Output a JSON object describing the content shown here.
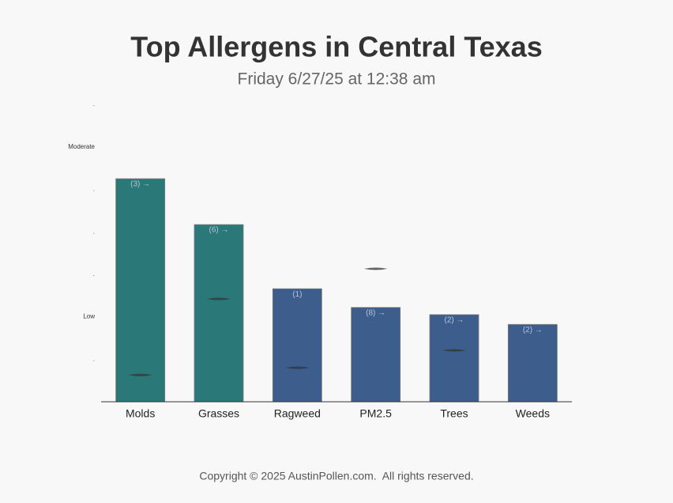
{
  "chart_data": {
    "type": "bar",
    "title": "Top Allergens in Central Texas",
    "subtitle": "Friday 6/27/25 at 12:38 am",
    "categories": [
      "Molds",
      "Grasses",
      "Ragweed",
      "PM2.5",
      "Trees",
      "Weeds"
    ],
    "values": [
      5.25,
      4.17,
      2.66,
      2.22,
      2.05,
      1.82
    ],
    "colors": [
      "#2a7878",
      "#2a7878",
      "#3d5d8c",
      "#3d5d8c",
      "#3d5d8c",
      "#3d5d8c"
    ],
    "annotations": [
      "(3) →",
      "(6) →",
      "(1)",
      "(8) →",
      "(2) →",
      "(2) →"
    ],
    "markers": [
      0.63,
      2.42,
      0.8,
      3.13,
      1.21,
      null
    ],
    "ylim": [
      0,
      7
    ],
    "yticks": [
      {
        "value": 1,
        "label": "."
      },
      {
        "value": 2,
        "label": "Low"
      },
      {
        "value": 3,
        "label": "."
      },
      {
        "value": 4,
        "label": "."
      },
      {
        "value": 5,
        "label": "."
      },
      {
        "value": 6,
        "label": "Moderate"
      },
      {
        "value": 7,
        "label": "."
      }
    ]
  },
  "footer": "Copyright © 2025 AustinPollen.com.  All rights reserved."
}
